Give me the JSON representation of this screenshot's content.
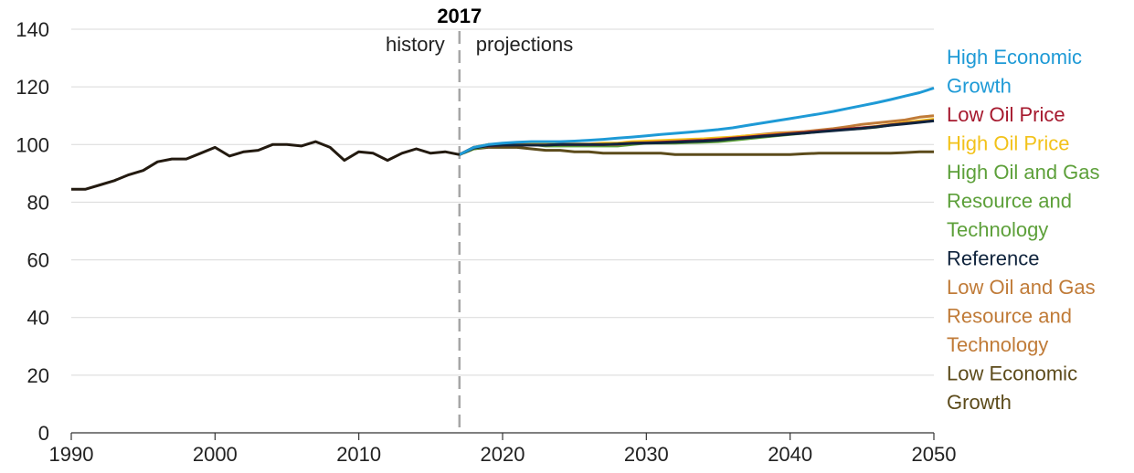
{
  "chart_data": {
    "type": "line",
    "xlim": [
      1990,
      2050
    ],
    "ylim": [
      0,
      140
    ],
    "x_ticks": [
      1990,
      2000,
      2010,
      2020,
      2030,
      2040,
      2050
    ],
    "y_ticks": [
      0,
      20,
      40,
      60,
      80,
      100,
      120,
      140
    ],
    "x_tick_labels": [
      "1990",
      "2000",
      "2010",
      "2020",
      "2030",
      "2040",
      "2050"
    ],
    "y_tick_labels": [
      "0",
      "20",
      "40",
      "60",
      "80",
      "100",
      "120",
      "140"
    ],
    "grid": "horizontal",
    "divider": {
      "x": 2017,
      "label": "2017",
      "left_label": "history",
      "right_label": "projections"
    },
    "history": {
      "color": "#231a10",
      "x": [
        1990,
        1991,
        1992,
        1993,
        1994,
        1995,
        1996,
        1997,
        1998,
        1999,
        2000,
        2001,
        2002,
        2003,
        2004,
        2005,
        2006,
        2007,
        2008,
        2009,
        2010,
        2011,
        2012,
        2013,
        2014,
        2015,
        2016,
        2017
      ],
      "y": [
        84.5,
        84.5,
        86,
        87.5,
        89.5,
        91,
        94,
        95,
        95,
        97,
        99,
        96,
        97.5,
        98,
        100,
        100,
        99.5,
        101,
        99,
        94.5,
        97.5,
        97,
        94.5,
        97,
        98.5,
        97,
        97.5,
        96.5
      ]
    },
    "projection_x": [
      2017,
      2018,
      2019,
      2020,
      2021,
      2022,
      2023,
      2024,
      2025,
      2026,
      2027,
      2028,
      2029,
      2030,
      2031,
      2032,
      2033,
      2034,
      2035,
      2036,
      2037,
      2038,
      2039,
      2040,
      2041,
      2042,
      2043,
      2044,
      2045,
      2046,
      2047,
      2048,
      2049,
      2050
    ],
    "series": [
      {
        "name": "Low Economic Growth",
        "label_lines": [
          "Low Economic",
          "Growth"
        ],
        "color": "#5c4b1b",
        "values": [
          96.5,
          98.5,
          99,
          99,
          99,
          98.5,
          98,
          98,
          97.5,
          97.5,
          97,
          97,
          97,
          97,
          97,
          96.5,
          96.5,
          96.5,
          96.5,
          96.5,
          96.5,
          96.5,
          96.5,
          96.5,
          96.8,
          97,
          97,
          97,
          97,
          97,
          97,
          97.2,
          97.5,
          97.5
        ]
      },
      {
        "name": "High Oil and Gas Resource and Technology",
        "label_lines": [
          "High Oil and Gas",
          "Resource and",
          "Technology"
        ],
        "color": "#5da03a",
        "values": [
          96.5,
          98.5,
          99.5,
          100,
          100,
          100,
          99.5,
          99.5,
          99.5,
          99.5,
          99.5,
          99.5,
          100,
          100.5,
          100.5,
          100.5,
          100.7,
          100.8,
          101,
          101.5,
          102,
          102.5,
          103,
          103.5,
          104,
          104.5,
          105,
          105.3,
          105.6,
          106,
          106.8,
          107.5,
          108,
          108.5
        ]
      },
      {
        "name": "Low Oil and Gas Resource and Technology",
        "label_lines": [
          "Low Oil and Gas",
          "Resource and",
          "Technology"
        ],
        "color": "#c07b38",
        "values": [
          96.5,
          99,
          100,
          100,
          100,
          100,
          100,
          100,
          100,
          100,
          100,
          100,
          100.5,
          100.8,
          101,
          101.2,
          101.5,
          101.8,
          102,
          102.5,
          103,
          103.5,
          104,
          104.2,
          104.5,
          105,
          105.5,
          106.2,
          107,
          107.5,
          108,
          108.5,
          109.5,
          110
        ]
      },
      {
        "name": "High Oil Price",
        "label_lines": [
          "High Oil Price"
        ],
        "color": "#f2c21a",
        "values": [
          96.5,
          99,
          100,
          100,
          100.2,
          100.3,
          100.3,
          100.2,
          100.2,
          100.2,
          100.5,
          100.5,
          101,
          101.2,
          101.4,
          101.6,
          101.8,
          102,
          102.3,
          102.6,
          103,
          103.3,
          103.6,
          104,
          104.3,
          104.6,
          105,
          105.4,
          105.8,
          106.3,
          107,
          107.6,
          108.2,
          108.8
        ]
      },
      {
        "name": "Low Oil Price",
        "label_lines": [
          "Low Oil Price"
        ],
        "color": "#a6192e",
        "values": [
          96.5,
          99,
          99.5,
          99.8,
          99.8,
          99.8,
          99.8,
          100,
          100,
          100,
          100,
          100.2,
          100.5,
          100.6,
          100.8,
          101,
          101.3,
          101.5,
          101.8,
          102.2,
          102.6,
          103,
          103.4,
          103.8,
          104.2,
          104.6,
          105,
          105.4,
          105.8,
          106.2,
          106.8,
          107.3,
          107.8,
          108.3
        ]
      },
      {
        "name": "Reference",
        "label_lines": [
          "Reference"
        ],
        "color": "#10243d",
        "values": [
          96.5,
          98.8,
          99.6,
          99.8,
          99.8,
          99.8,
          99.8,
          100,
          100,
          100,
          100,
          100.2,
          100.4,
          100.5,
          100.6,
          100.8,
          101,
          101.2,
          101.5,
          102,
          102.4,
          102.8,
          103.2,
          103.6,
          104,
          104.4,
          104.8,
          105.2,
          105.6,
          106.1,
          106.7,
          107.2,
          107.7,
          108.2
        ]
      },
      {
        "name": "High Economic Growth",
        "label_lines": [
          "High Economic",
          "Growth"
        ],
        "color": "#1e9ad6",
        "values": [
          96.5,
          99,
          100,
          100.5,
          100.8,
          101,
          101,
          101,
          101.2,
          101.5,
          101.8,
          102.2,
          102.6,
          103,
          103.5,
          103.9,
          104.3,
          104.7,
          105.2,
          105.8,
          106.6,
          107.4,
          108.2,
          109,
          109.8,
          110.6,
          111.5,
          112.5,
          113.5,
          114.5,
          115.6,
          116.8,
          118,
          119.6
        ]
      }
    ],
    "legend_order": [
      "High Economic Growth",
      "Low Oil Price",
      "High Oil Price",
      "High Oil and Gas Resource and Technology",
      "Reference",
      "Low Oil and Gas Resource and Technology",
      "Low Economic Growth"
    ]
  }
}
